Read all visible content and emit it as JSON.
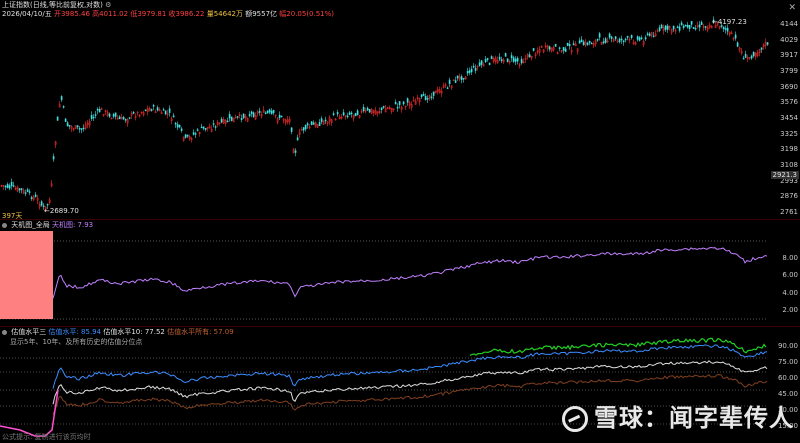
{
  "main_panel": {
    "title": "上证指数(日线,等比前复权,对数)",
    "date": "2026/04/10/五",
    "open": "开3985.46",
    "high": "高4011.02",
    "low": "低3979.81",
    "close": "收3986.22",
    "volume": "量54642万",
    "amount": "额9557亿",
    "change": "幅20.05(0.51%)",
    "axis": [
      "4144",
      "4029",
      "3917",
      "3799",
      "3690",
      "3576",
      "3454",
      "3325",
      "3198",
      "3108",
      "2993",
      "2876",
      "2761"
    ],
    "last_price_tag": "2921.3",
    "high_label": "4197.23",
    "low_label": "2689.70",
    "days_label": "397天"
  },
  "mid_panel": {
    "name": "天机图_全局",
    "value_label": "天机图: 7.93",
    "axis": [
      "8.00",
      "6.00",
      "4.00",
      "2.00"
    ]
  },
  "bottom_panel": {
    "name": "估值水平三",
    "lvl1": "估值水平: 85.94",
    "lvl10": "估值水平10: 77.52",
    "lvl_all": "估值水平所有: 57.09",
    "note": "显示5年、10年、及所有历史的估值分位点",
    "axis": [
      "90.00",
      "75.00",
      "60.00",
      "45.00",
      "30.00",
      "15.00"
    ],
    "footer": "公式提示: 复制进行该页均时"
  },
  "watermark": "雪球：闻字辈传人",
  "colors": {
    "up": "#ff3030",
    "down": "#40e0e0",
    "purple": "#c080ff",
    "blue": "#3c8cff",
    "green": "#20d020",
    "white": "#e0e0e0",
    "pink": "#ff50d0",
    "salmon": "#ff8080"
  }
}
